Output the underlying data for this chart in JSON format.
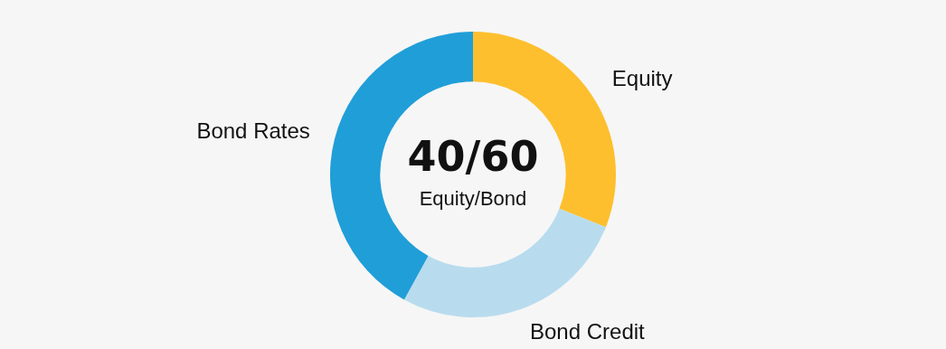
{
  "chart_data": {
    "type": "donut",
    "categories": [
      "Equity",
      "Bond Credit",
      "Bond Rates"
    ],
    "values": [
      31,
      27,
      42
    ],
    "colors": [
      "#fdbf2d",
      "#b8dcee",
      "#209ed8"
    ],
    "annotations": [
      "40/60",
      "Equity/Bond"
    ],
    "legend": false
  }
}
